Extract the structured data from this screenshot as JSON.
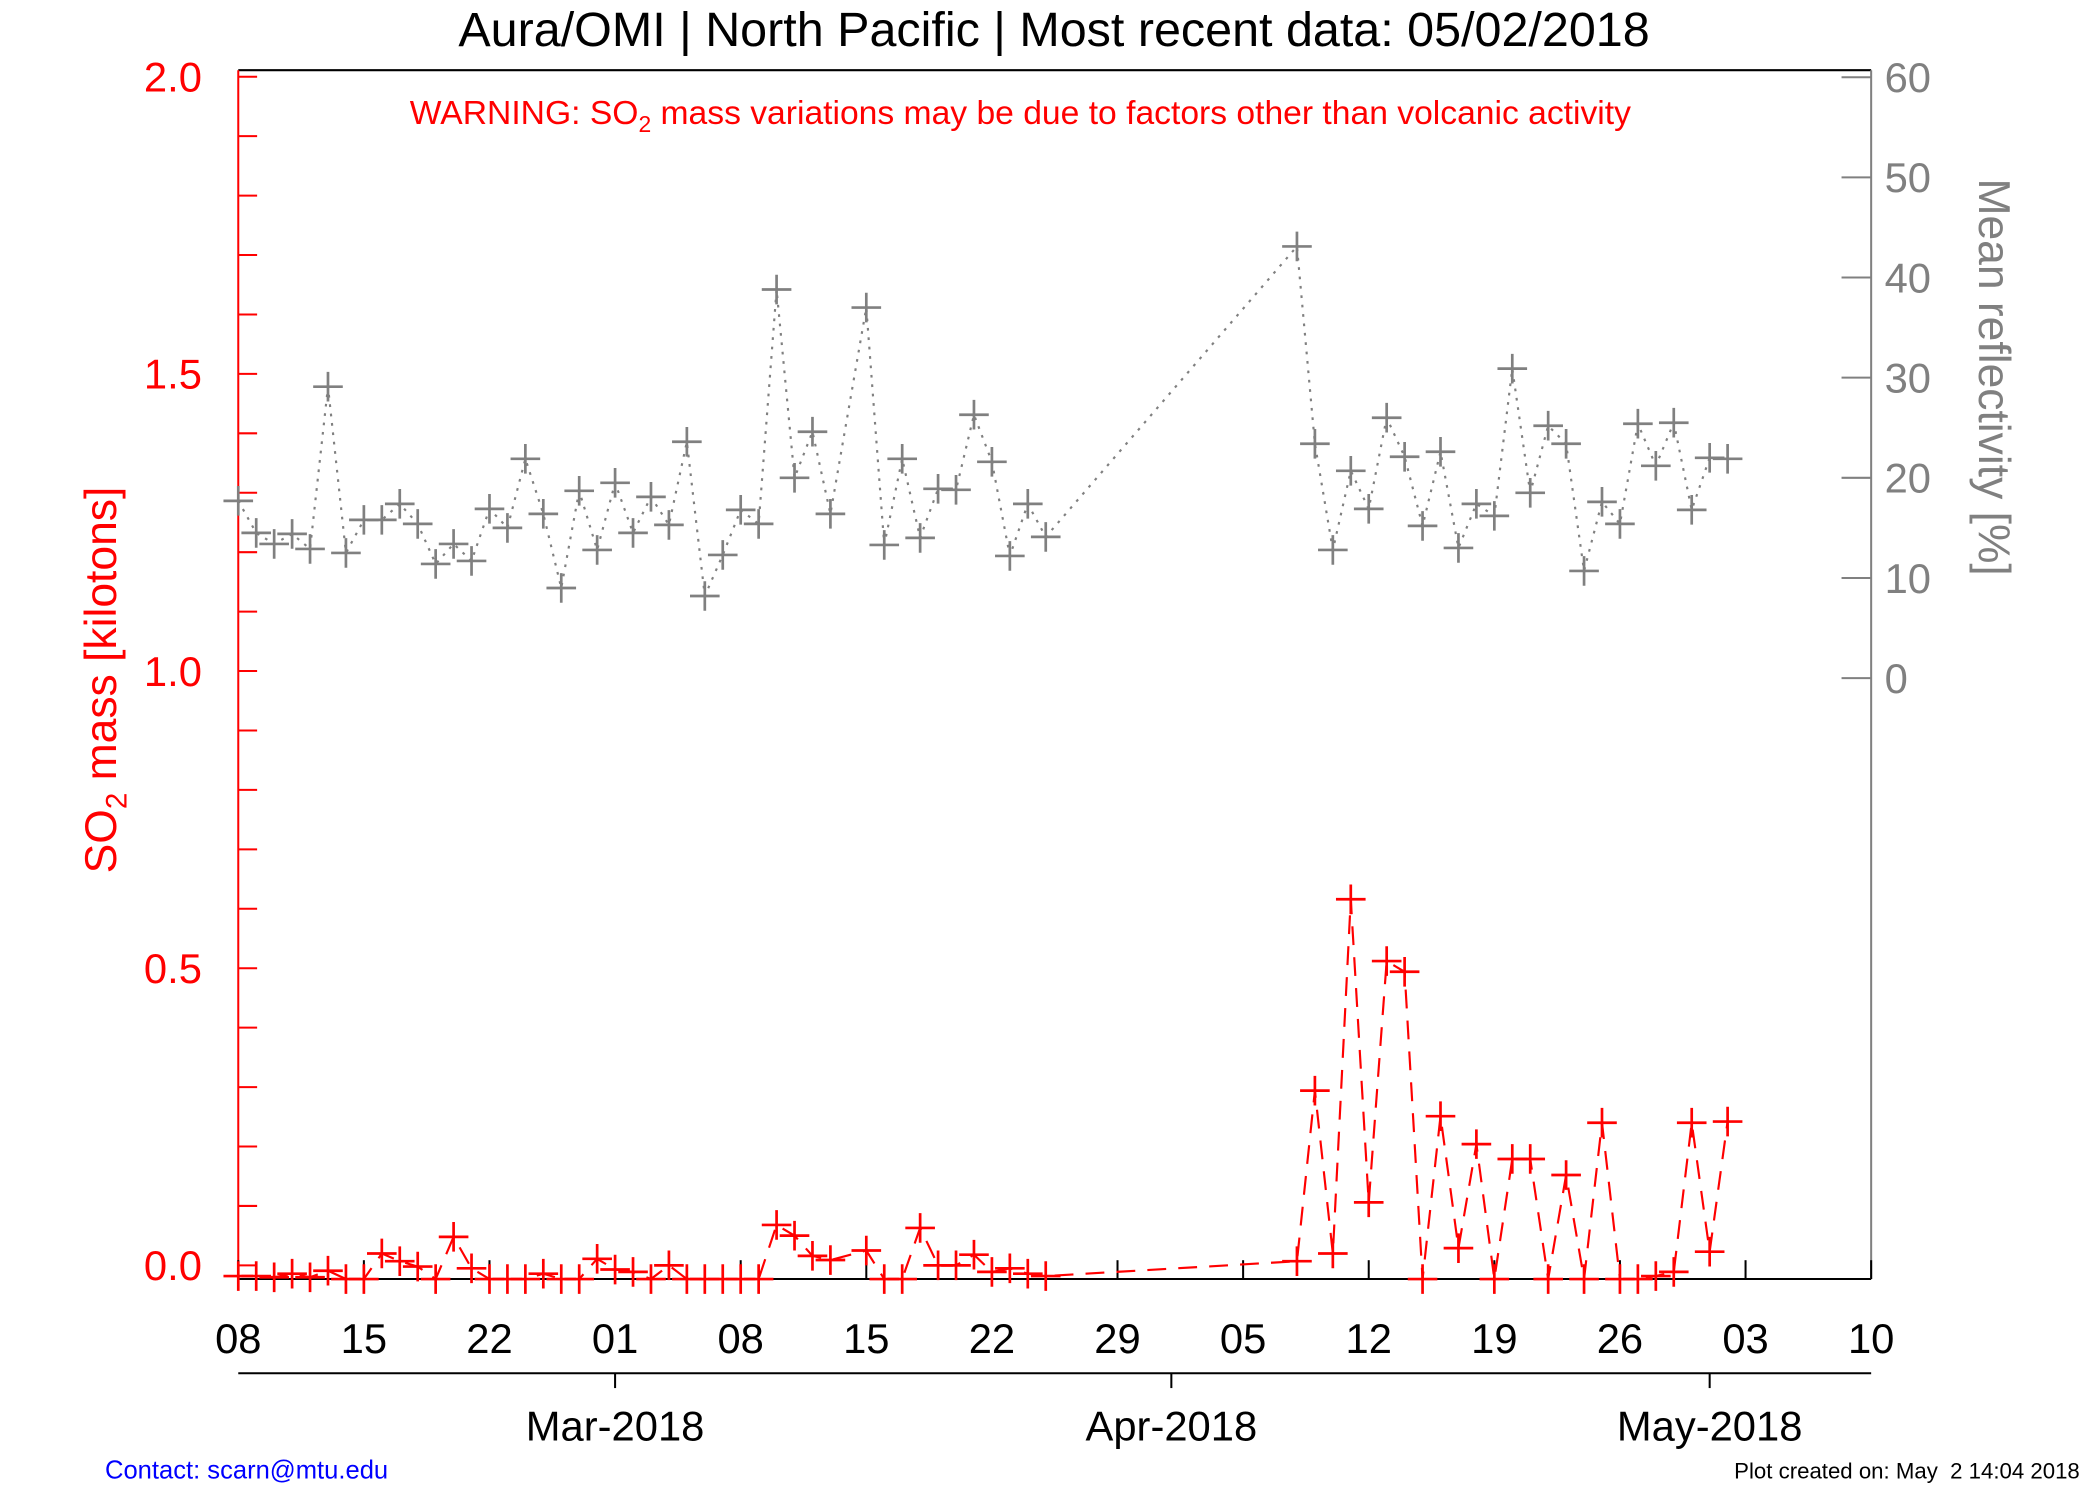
{
  "chart_data": {
    "type": "line",
    "title": "Aura/OMI | North Pacific | Most recent data: 05/02/2018",
    "annotation": [
      "WARNING: SO",
      "2",
      " mass variations may be due to factors other than volcanic activity"
    ],
    "annotation_color": "#ff0000",
    "ylabel": [
      "SO",
      "2",
      " mass [kilotons]"
    ],
    "y2label": "Mean reflectivity [%]",
    "x": [
      "2018-02-08",
      "2018-02-09",
      "2018-02-10",
      "2018-02-11",
      "2018-02-12",
      "2018-02-13",
      "2018-02-14",
      "2018-02-15",
      "2018-02-16",
      "2018-02-17",
      "2018-02-18",
      "2018-02-19",
      "2018-02-20",
      "2018-02-21",
      "2018-02-22",
      "2018-02-23",
      "2018-02-24",
      "2018-02-25",
      "2018-02-26",
      "2018-02-27",
      "2018-02-28",
      "2018-03-01",
      "2018-03-02",
      "2018-03-03",
      "2018-03-04",
      "2018-03-05",
      "2018-03-06",
      "2018-03-07",
      "2018-03-08",
      "2018-03-09",
      "2018-03-10",
      "2018-03-11",
      "2018-03-12",
      "2018-03-13",
      "2018-03-15",
      "2018-03-16",
      "2018-03-17",
      "2018-03-18",
      "2018-03-19",
      "2018-03-20",
      "2018-03-21",
      "2018-03-22",
      "2018-03-23",
      "2018-03-24",
      "2018-03-25",
      "2018-04-08",
      "2018-04-09",
      "2018-04-10",
      "2018-04-11",
      "2018-04-12",
      "2018-04-13",
      "2018-04-14",
      "2018-04-15",
      "2018-04-16",
      "2018-04-17",
      "2018-04-18",
      "2018-04-19",
      "2018-04-20",
      "2018-04-21",
      "2018-04-22",
      "2018-04-23",
      "2018-04-24",
      "2018-04-25",
      "2018-04-26",
      "2018-04-27",
      "2018-04-28",
      "2018-04-29",
      "2018-04-30",
      "2018-05-01",
      "2018-05-02"
    ],
    "xlim": [
      "2018-02-08",
      "2018-05-10"
    ],
    "xticks": [
      {
        "value": "2018-02-08",
        "label": "08"
      },
      {
        "value": "2018-02-15",
        "label": "15"
      },
      {
        "value": "2018-02-22",
        "label": "22"
      },
      {
        "value": "2018-03-01",
        "label": "01"
      },
      {
        "value": "2018-03-08",
        "label": "08"
      },
      {
        "value": "2018-03-15",
        "label": "15"
      },
      {
        "value": "2018-03-22",
        "label": "22"
      },
      {
        "value": "2018-03-29",
        "label": "29"
      },
      {
        "value": "2018-04-05",
        "label": "05"
      },
      {
        "value": "2018-04-12",
        "label": "12"
      },
      {
        "value": "2018-04-19",
        "label": "19"
      },
      {
        "value": "2018-04-26",
        "label": "26"
      },
      {
        "value": "2018-05-03",
        "label": "03"
      },
      {
        "value": "2018-05-10",
        "label": "10"
      }
    ],
    "month_ticks": [
      {
        "value": "2018-03-01",
        "label": "Mar-2018"
      },
      {
        "value": "2018-04-01",
        "label": "Apr-2018"
      },
      {
        "value": "2018-05-01",
        "label": "May-2018"
      }
    ],
    "ylim": [
      -0.023,
      2.011
    ],
    "yticks": [
      {
        "value": 0,
        "label": "0.0"
      },
      {
        "value": 0.5,
        "label": "0.5"
      },
      {
        "value": 1,
        "label": "1.0"
      },
      {
        "value": 1.5,
        "label": "1.5"
      },
      {
        "value": 2,
        "label": "2.0"
      }
    ],
    "yminorticks": [
      0.1,
      0.2,
      0.3,
      0.4,
      0.6,
      0.7,
      0.8,
      0.9,
      1.1,
      1.2,
      1.3,
      1.4,
      1.6,
      1.7,
      1.8,
      1.9
    ],
    "y2lim": [
      -60,
      60.7
    ],
    "y2ticks": [
      0,
      10,
      20,
      30,
      40,
      50,
      60
    ],
    "series": [
      {
        "color": "#ff0000",
        "line_style": "dashed",
        "axis": "y",
        "values": [
          -0.018,
          -0.018,
          -0.02,
          -0.014,
          -0.02,
          -0.009,
          -0.023,
          -0.023,
          0.02,
          0.007,
          -0.002,
          -0.023,
          0.048,
          -0.005,
          -0.023,
          -0.023,
          -0.023,
          -0.014,
          -0.023,
          -0.023,
          0.011,
          -0.007,
          -0.011,
          -0.023,
          0.0,
          -0.023,
          -0.023,
          -0.023,
          -0.023,
          -0.023,
          0.068,
          0.05,
          0.016,
          0.009,
          0.025,
          -0.023,
          -0.023,
          0.063,
          0.0,
          0.0,
          0.018,
          -0.011,
          -0.005,
          -0.014,
          -0.018,
          0.007,
          0.294,
          0.02,
          0.616,
          0.106,
          0.512,
          0.494,
          -0.023,
          0.251,
          0.029,
          0.204,
          -0.023,
          0.179,
          0.179,
          -0.023,
          0.152,
          -0.023,
          0.24,
          -0.023,
          -0.023,
          -0.018,
          -0.011,
          0.24,
          0.023,
          0.242
        ]
      },
      {
        "color": "#808080",
        "line_style": "dotted",
        "axis": "y2",
        "values": [
          17.7,
          14.5,
          13.4,
          14.4,
          12.9,
          29.1,
          12.5,
          15.8,
          15.8,
          17.4,
          15.4,
          11.4,
          13.4,
          11.7,
          16.9,
          15.0,
          21.9,
          16.4,
          9.0,
          18.7,
          12.8,
          19.5,
          14.5,
          18.1,
          15.3,
          23.6,
          8.2,
          12.3,
          16.8,
          15.4,
          38.8,
          20.0,
          24.6,
          16.4,
          37.0,
          13.3,
          21.9,
          14.0,
          18.9,
          18.8,
          26.3,
          21.6,
          12.2,
          17.4,
          14.1,
          43.1,
          23.4,
          12.8,
          20.7,
          16.9,
          26.0,
          22.1,
          15.2,
          22.6,
          13.0,
          17.4,
          16.2,
          30.9,
          18.5,
          25.2,
          23.4,
          10.7,
          17.6,
          15.4,
          25.4,
          21.2,
          25.5,
          16.8,
          22.0,
          21.9
        ]
      }
    ]
  },
  "footer": {
    "contact": "Contact: scarn@mtu.edu",
    "contact_color": "#0000ff",
    "created": "Plot created on: May  2 14:04 2018"
  }
}
